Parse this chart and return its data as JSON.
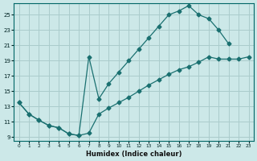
{
  "xlabel": "Humidex (Indice chaleur)",
  "bg_color": "#cce8e8",
  "grid_color": "#aacccc",
  "line_color": "#1a7070",
  "xlim": [
    -0.5,
    23.5
  ],
  "ylim": [
    8.5,
    26.5
  ],
  "xticks": [
    0,
    1,
    2,
    3,
    4,
    5,
    6,
    7,
    8,
    9,
    10,
    11,
    12,
    13,
    14,
    15,
    16,
    17,
    18,
    19,
    20,
    21,
    22,
    23
  ],
  "yticks": [
    9,
    11,
    13,
    15,
    17,
    19,
    21,
    23,
    25
  ],
  "curve_upper_x": [
    0,
    1,
    2,
    3,
    4,
    5,
    6,
    7,
    8,
    9,
    10,
    11,
    12,
    13,
    14,
    15,
    16,
    17,
    18,
    19,
    20,
    21
  ],
  "curve_upper_y": [
    13.5,
    12.0,
    11.2,
    10.5,
    10.2,
    9.4,
    9.2,
    19.5,
    14.0,
    16.0,
    17.5,
    19.0,
    20.5,
    22.0,
    23.5,
    25.0,
    25.5,
    26.2,
    25.0,
    24.5,
    23.0,
    21.2
  ],
  "curve_lower_x": [
    0,
    1,
    2,
    3,
    4,
    5,
    6,
    7,
    8,
    9,
    10,
    11,
    12,
    13,
    14,
    15,
    16,
    17,
    18,
    19,
    20,
    21,
    22,
    23
  ],
  "curve_lower_y": [
    13.5,
    12.0,
    11.2,
    10.5,
    10.2,
    9.4,
    9.2,
    9.5,
    12.0,
    12.8,
    13.5,
    14.2,
    15.0,
    15.8,
    16.5,
    17.2,
    17.8,
    18.2,
    18.8,
    19.5,
    19.2,
    19.2,
    19.2,
    19.5
  ]
}
